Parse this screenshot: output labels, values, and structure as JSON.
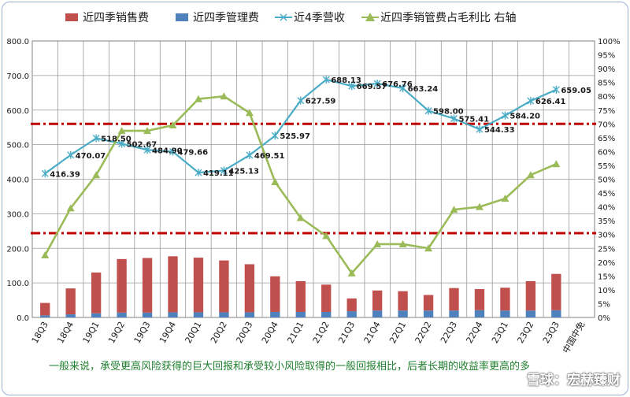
{
  "chart_data": {
    "type": "bar",
    "categories": [
      "18Q3",
      "18Q4",
      "19Q1",
      "19Q2",
      "19Q3",
      "19Q4",
      "20Q1",
      "20Q2",
      "20Q3",
      "20Q4",
      "21Q1",
      "21Q2",
      "21Q3",
      "21Q4",
      "22Q1",
      "22Q2",
      "22Q3",
      "22Q4",
      "23Q1",
      "23Q2",
      "23Q3"
    ],
    "company": "中国中免",
    "legend_position": "top",
    "grid": true,
    "ylim": [
      0,
      800
    ],
    "y_ticks": [
      "0.0",
      "100.0",
      "200.0",
      "300.0",
      "400.0",
      "500.0",
      "600.0",
      "700.0",
      "800.0"
    ],
    "y2lim": [
      0,
      100
    ],
    "y2_ticks": [
      "0%",
      "5%",
      "10%",
      "15%",
      "20%",
      "25%",
      "30%",
      "35%",
      "40%",
      "45%",
      "50%",
      "55%",
      "60%",
      "65%",
      "70%",
      "75%",
      "80%",
      "85%",
      "90%",
      "95%",
      "100%"
    ],
    "series": [
      {
        "name": "近四季销售费",
        "type": "bar",
        "axis": "left",
        "color": "#c0504d",
        "values": [
          36,
          75,
          118,
          155,
          158,
          162,
          158,
          150,
          139,
          103,
          89,
          79,
          37,
          58,
          56,
          45,
          65,
          61,
          66,
          85,
          105
        ]
      },
      {
        "name": "近四季管理费",
        "type": "bar",
        "axis": "left",
        "color": "#4f81bd",
        "values": [
          6,
          9,
          12,
          14,
          14,
          15,
          15,
          15,
          15,
          16,
          16,
          16,
          18,
          20,
          20,
          20,
          20,
          21,
          20,
          20,
          21
        ]
      },
      {
        "name": "近4季营收",
        "type": "line",
        "axis": "left",
        "color": "#4bacc6",
        "marker": "star",
        "values": [
          416.39,
          470.07,
          518.5,
          502.67,
          484.9,
          479.66,
          419.11,
          425.13,
          469.51,
          525.97,
          627.59,
          688.13,
          669.57,
          676.76,
          663.24,
          598.0,
          575.41,
          544.33,
          584.2,
          626.41,
          659.05
        ],
        "labels": [
          "416.39",
          "470.07",
          "518.50",
          "502.67",
          "484.90",
          "479.66",
          "419.11",
          "425.13",
          "469.51",
          "525.97",
          "627.59",
          "688.13",
          "669.57",
          "676.76",
          "663.24",
          "598.00",
          "575.41",
          "544.33",
          "584.20",
          "626.41",
          "659.05"
        ]
      },
      {
        "name": "近四季销管费占毛利比 右轴",
        "type": "line",
        "axis": "right",
        "color": "#9bbb59",
        "marker": "triangle",
        "values": [
          22.5,
          39.5,
          51.5,
          67.5,
          67.5,
          69.5,
          79,
          80,
          74,
          49,
          36,
          29.5,
          16,
          26.5,
          26.5,
          25,
          39,
          40,
          43,
          51.5,
          55.5
        ]
      }
    ],
    "reference_lines": [
      {
        "axis": "right",
        "value": 70,
        "color": "#c00000",
        "style": "dash-dot"
      },
      {
        "axis": "right",
        "value": 30.5,
        "color": "#c00000",
        "style": "dash-dot"
      }
    ]
  },
  "caption": "一般来说，承受更高风险获得的巨大回报和承受较小风险取得的一般回报相比，后者长期的收益率更高的多",
  "watermark": "雪球：宏赫臻财"
}
